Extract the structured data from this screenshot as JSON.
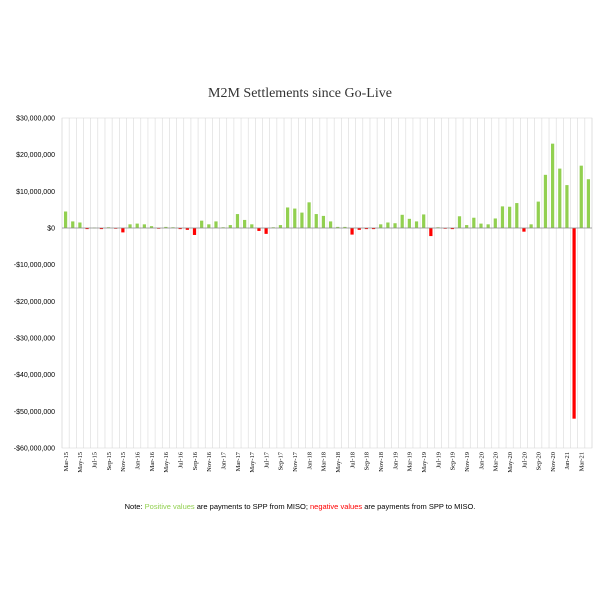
{
  "chart_data": {
    "type": "bar",
    "title": "M2M Settlements since Go-Live",
    "xlabel": "",
    "ylabel": "",
    "ylim": [
      -60000000,
      30000000
    ],
    "y_ticks": [
      30000000,
      20000000,
      10000000,
      0,
      -10000000,
      -20000000,
      -30000000,
      -40000000,
      -50000000,
      -60000000
    ],
    "y_tick_labels": [
      "$30,000,000",
      "$20,000,000",
      "$10,000,000",
      "$0",
      "-$10,000,000",
      "-$20,000,000",
      "-$30,000,000",
      "-$40,000,000",
      "-$50,000,000",
      "-$60,000,000"
    ],
    "grid": "vertical",
    "legend": "none",
    "positive_color": "#92d050",
    "negative_color": "#ff0000",
    "categories": [
      "Mar-15",
      "Apr-15",
      "May-15",
      "Jun-15",
      "Jul-15",
      "Aug-15",
      "Sep-15",
      "Oct-15",
      "Nov-15",
      "Dec-15",
      "Jan-16",
      "Feb-16",
      "Mar-16",
      "Apr-16",
      "May-16",
      "Jun-16",
      "Jul-16",
      "Aug-16",
      "Sep-16",
      "Oct-16",
      "Nov-16",
      "Dec-16",
      "Jan-17",
      "Feb-17",
      "Mar-17",
      "Apr-17",
      "May-17",
      "Jun-17",
      "Jul-17",
      "Aug-17",
      "Sep-17",
      "Oct-17",
      "Nov-17",
      "Dec-17",
      "Jan-18",
      "Feb-18",
      "Mar-18",
      "Apr-18",
      "May-18",
      "Jun-18",
      "Jul-18",
      "Aug-18",
      "Sep-18",
      "Oct-18",
      "Nov-18",
      "Dec-18",
      "Jan-19",
      "Feb-19",
      "Mar-19",
      "Apr-19",
      "May-19",
      "Jun-19",
      "Jul-19",
      "Aug-19",
      "Sep-19",
      "Oct-19",
      "Nov-19",
      "Dec-19",
      "Jan-20",
      "Feb-20",
      "Mar-20",
      "Apr-20",
      "May-20",
      "Jun-20",
      "Jul-20",
      "Aug-20",
      "Sep-20",
      "Oct-20",
      "Nov-20",
      "Dec-20",
      "Jan-21",
      "Feb-21",
      "Mar-21",
      "Apr-21"
    ],
    "x_tick_labels": [
      "Mar-15",
      "",
      "May-15",
      "",
      "Jul-15",
      "",
      "Sep-15",
      "",
      "Nov-15",
      "",
      "Jan-16",
      "",
      "Mar-16",
      "",
      "May-16",
      "",
      "Jul-16",
      "",
      "Sep-16",
      "",
      "Nov-16",
      "",
      "Jan-17",
      "",
      "Mar-17",
      "",
      "May-17",
      "",
      "Jul-17",
      "",
      "Sep-17",
      "",
      "Nov-17",
      "",
      "Jan-18",
      "",
      "Mar-18",
      "",
      "May-18",
      "",
      "Jul-18",
      "",
      "Sep-18",
      "",
      "Nov-18",
      "",
      "Jan-19",
      "",
      "Mar-19",
      "",
      "May-19",
      "",
      "Jul-19",
      "",
      "Sep-19",
      "",
      "Nov-19",
      "",
      "Jan-20",
      "",
      "Mar-20",
      "",
      "May-20",
      "",
      "Jul-20",
      "",
      "Sep-20",
      "",
      "Nov-20",
      "",
      "Jan-21",
      "",
      "Mar-21",
      ""
    ],
    "values": [
      4500000,
      1800000,
      1500000,
      -300000,
      100000,
      -300000,
      200000,
      -200000,
      -1200000,
      1000000,
      1200000,
      1000000,
      500000,
      -200000,
      300000,
      200000,
      -300000,
      -500000,
      -1900000,
      2000000,
      1000000,
      1800000,
      200000,
      800000,
      3800000,
      2200000,
      1000000,
      -800000,
      -1600000,
      200000,
      800000,
      5600000,
      5300000,
      4200000,
      7000000,
      3800000,
      3300000,
      1800000,
      300000,
      300000,
      -1800000,
      -500000,
      -300000,
      -300000,
      1000000,
      1500000,
      1300000,
      3600000,
      2500000,
      1800000,
      3700000,
      -2200000,
      200000,
      -200000,
      -300000,
      3200000,
      800000,
      2800000,
      1200000,
      1000000,
      2600000,
      5900000,
      5800000,
      6800000,
      -1000000,
      1000000,
      7200000,
      14500000,
      23000000,
      16200000,
      11700000,
      -52000000,
      17000000,
      13300000
    ]
  },
  "note": {
    "prefix": "Note:  ",
    "positive_phrase": "Positive values",
    "middle": " are payments to SPP from MISO; ",
    "negative_phrase": "negative values",
    "suffix": " are payments from SPP to MISO."
  }
}
